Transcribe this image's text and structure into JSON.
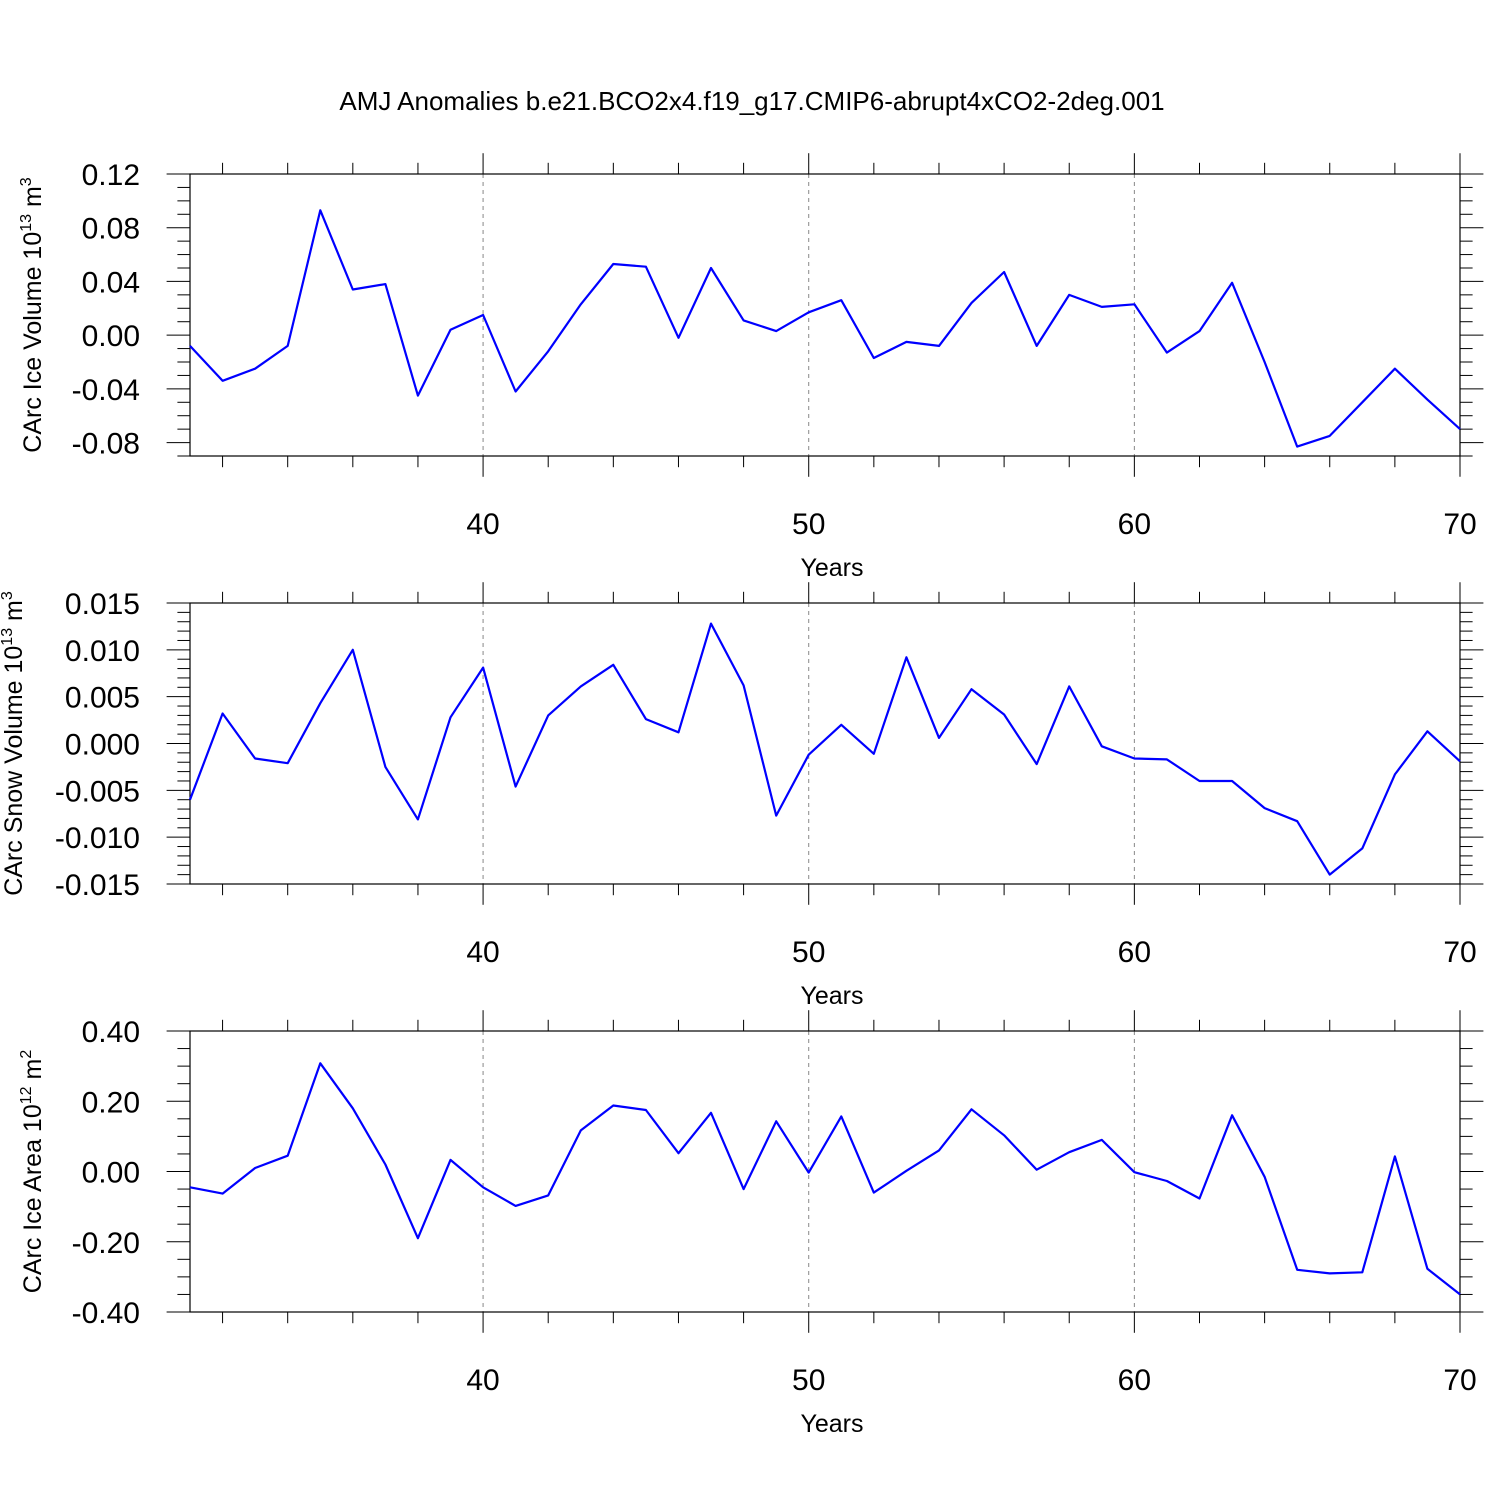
{
  "figure_title": "AMJ Anomalies b.e21.BCO2x4.f19_g17.CMIP6-abrupt4xCO2-2deg.001",
  "colors": {
    "line": "#0000ff",
    "grid": "#888888",
    "frame": "#000000"
  },
  "chart_data": [
    {
      "type": "line",
      "xlabel": "Years",
      "ylabel": {
        "base": "CArc Ice Volume 10",
        "exp": "13",
        "unit": " m",
        "unit_exp": "3"
      },
      "xlim": [
        31,
        70
      ],
      "ylim": [
        -0.09,
        0.12
      ],
      "xticks": [
        40,
        50,
        60,
        70
      ],
      "xtick_labels": [
        "40",
        "50",
        "60",
        "70"
      ],
      "yticks": [
        -0.08,
        -0.04,
        0.0,
        0.04,
        0.08,
        0.12
      ],
      "ytick_labels": [
        "-0.08",
        "-0.04",
        "0.00",
        "0.04",
        "0.08",
        "0.12"
      ],
      "y_minor_step": 0.01,
      "grid_x": [
        40,
        50,
        60
      ],
      "x": [
        31,
        32,
        33,
        34,
        35,
        36,
        37,
        38,
        39,
        40,
        41,
        42,
        43,
        44,
        45,
        46,
        47,
        48,
        49,
        50,
        51,
        52,
        53,
        54,
        55,
        56,
        57,
        58,
        59,
        60,
        61,
        62,
        63,
        64,
        65,
        66,
        67,
        68,
        69,
        70
      ],
      "values": [
        -0.008,
        -0.034,
        -0.025,
        -0.008,
        0.093,
        0.034,
        0.038,
        -0.045,
        0.004,
        0.015,
        -0.042,
        -0.012,
        0.023,
        0.053,
        0.051,
        -0.002,
        0.05,
        0.011,
        0.003,
        0.017,
        0.026,
        -0.017,
        -0.005,
        -0.008,
        0.024,
        0.047,
        -0.008,
        0.03,
        0.021,
        0.023,
        -0.013,
        0.003,
        0.039,
        -0.02,
        -0.083,
        -0.075,
        -0.05,
        -0.025,
        -0.048,
        -0.07
      ]
    },
    {
      "type": "line",
      "xlabel": "Years",
      "ylabel": {
        "base": "CArc Snow Volume 10",
        "exp": "13",
        "unit": " m",
        "unit_exp": "3"
      },
      "xlim": [
        31,
        70
      ],
      "ylim": [
        -0.015,
        0.015
      ],
      "xticks": [
        40,
        50,
        60,
        70
      ],
      "xtick_labels": [
        "40",
        "50",
        "60",
        "70"
      ],
      "yticks": [
        -0.015,
        -0.01,
        -0.005,
        0.0,
        0.005,
        0.01,
        0.015
      ],
      "ytick_labels": [
        "-0.015",
        "-0.010",
        "-0.005",
        "0.000",
        "0.005",
        "0.010",
        "0.015"
      ],
      "y_minor_step": 0.001,
      "grid_x": [
        40,
        50,
        60
      ],
      "x": [
        31,
        32,
        33,
        34,
        35,
        36,
        37,
        38,
        39,
        40,
        41,
        42,
        43,
        44,
        45,
        46,
        47,
        48,
        49,
        50,
        51,
        52,
        53,
        54,
        55,
        56,
        57,
        58,
        59,
        60,
        61,
        62,
        63,
        64,
        65,
        66,
        67,
        68,
        69,
        70
      ],
      "values": [
        -0.006,
        0.0032,
        -0.0016,
        -0.0021,
        0.0043,
        0.01,
        -0.0025,
        -0.0081,
        0.0028,
        0.0081,
        -0.0046,
        0.003,
        0.0061,
        0.0084,
        0.0026,
        0.0012,
        0.0128,
        0.0062,
        -0.0077,
        -0.0012,
        0.002,
        -0.0011,
        0.0092,
        0.0006,
        0.0058,
        0.0031,
        -0.0022,
        0.0061,
        -0.0003,
        -0.0016,
        -0.0017,
        -0.004,
        -0.004,
        -0.0069,
        -0.0083,
        -0.014,
        -0.0112,
        -0.0033,
        0.0013,
        -0.0019
      ]
    },
    {
      "type": "line",
      "xlabel": "Years",
      "ylabel": {
        "base": "CArc Ice Area 10",
        "exp": "12",
        "unit": " m",
        "unit_exp": "2"
      },
      "xlim": [
        31,
        70
      ],
      "ylim": [
        -0.4,
        0.4
      ],
      "xticks": [
        40,
        50,
        60,
        70
      ],
      "xtick_labels": [
        "40",
        "50",
        "60",
        "70"
      ],
      "yticks": [
        -0.4,
        -0.2,
        0.0,
        0.2,
        0.4
      ],
      "ytick_labels": [
        "-0.40",
        "-0.20",
        "0.00",
        "0.20",
        "0.40"
      ],
      "y_minor_step": 0.05,
      "grid_x": [
        40,
        50,
        60
      ],
      "x": [
        31,
        32,
        33,
        34,
        35,
        36,
        37,
        38,
        39,
        40,
        41,
        42,
        43,
        44,
        45,
        46,
        47,
        48,
        49,
        50,
        51,
        52,
        53,
        54,
        55,
        56,
        57,
        58,
        59,
        60,
        61,
        62,
        63,
        64,
        65,
        66,
        67,
        68,
        69,
        70
      ],
      "values": [
        -0.045,
        -0.063,
        0.01,
        0.045,
        0.308,
        0.18,
        0.02,
        -0.19,
        0.033,
        -0.045,
        -0.098,
        -0.068,
        0.117,
        0.188,
        0.175,
        0.052,
        0.167,
        -0.05,
        0.143,
        -0.003,
        0.157,
        -0.06,
        0.002,
        0.06,
        0.177,
        0.103,
        0.005,
        0.055,
        0.09,
        -0.002,
        -0.027,
        -0.077,
        0.16,
        -0.015,
        -0.28,
        -0.29,
        -0.287,
        0.043,
        -0.277,
        -0.35
      ]
    }
  ]
}
